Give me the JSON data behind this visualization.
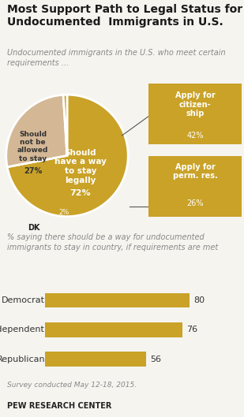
{
  "title": "Most Support Path to Legal Status for\nUndocumented  Immigrants in U.S.",
  "subtitle": "Undocumented immigrants in the U.S. who meet certain\nrequirements ...",
  "pie_values": [
    72,
    27,
    1
  ],
  "pie_colors": [
    "#C9A227",
    "#D4B896",
    "#C9A227"
  ],
  "dk_color": "#C9A227",
  "explode_box_labels": [
    "Apply for\ncitizen-\nship",
    "Apply for\nperm. res."
  ],
  "explode_box_values": [
    "42%",
    "26%"
  ],
  "explode_box_color": "#C9A227",
  "bar_categories": [
    "Democrat",
    "Independent",
    "Republican"
  ],
  "bar_values": [
    80,
    76,
    56
  ],
  "bar_color": "#C9A227",
  "bar_label": "% saying there should be a way for undocumented\nimmigrants to stay in country, if requirements are met",
  "footnote": "Survey conducted May 12-18, 2015.",
  "source": "PEW RESEARCH CENTER",
  "bg_color": "#f5f4ef",
  "bar_bg_color": "#ffffff",
  "title_color": "#1a1a1a",
  "subtitle_color": "#888888",
  "bar_label_color": "#888888",
  "connector_color": "#555555"
}
